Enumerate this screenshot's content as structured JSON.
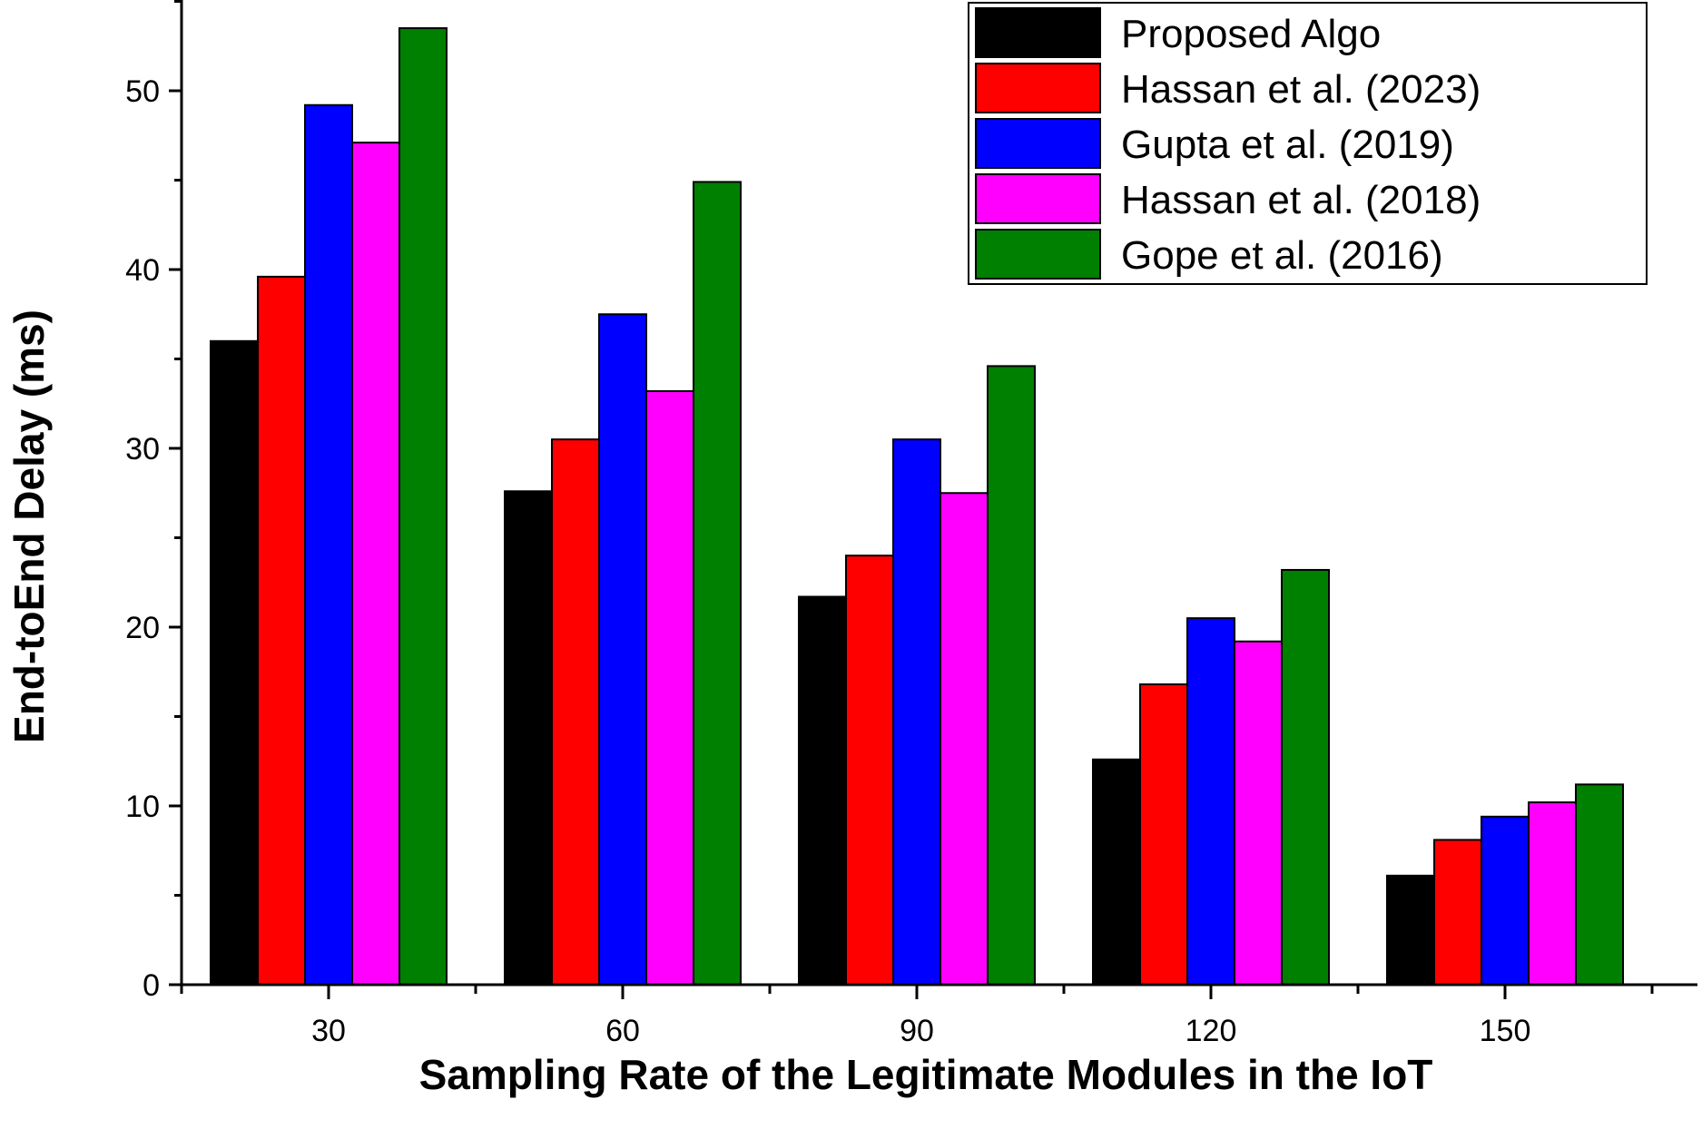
{
  "chart_data": {
    "type": "bar",
    "title": "",
    "xlabel": "Sampling Rate of the Legitimate Modules in the IoT",
    "ylabel": "End-toEnd Delay (ms)",
    "categories": [
      "30",
      "60",
      "90",
      "120",
      "150"
    ],
    "ylim": [
      0,
      55
    ],
    "yticks": [
      0,
      10,
      20,
      30,
      40,
      50
    ],
    "grid": false,
    "legend_position": "top-right",
    "series": [
      {
        "name": "Proposed Algo",
        "color": "#000000",
        "values": [
          36.0,
          27.6,
          21.7,
          12.6,
          6.1
        ]
      },
      {
        "name": "Hassan et al. (2023)",
        "color": "#ff0000",
        "values": [
          39.6,
          30.5,
          24.0,
          16.8,
          8.1
        ]
      },
      {
        "name": "Gupta et al. (2019)",
        "color": "#0000ff",
        "values": [
          49.2,
          37.5,
          30.5,
          20.5,
          9.4
        ]
      },
      {
        "name": "Hassan et al. (2018)",
        "color": "#ff00ff",
        "values": [
          47.1,
          33.2,
          27.5,
          19.2,
          10.2
        ]
      },
      {
        "name": "Gope et al.  (2016)",
        "color": "#008000",
        "values": [
          53.5,
          44.9,
          34.6,
          23.2,
          11.2
        ]
      }
    ]
  }
}
